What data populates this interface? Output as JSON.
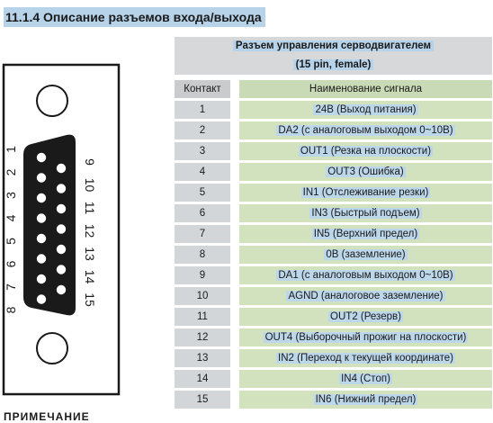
{
  "heading": "11.1.4 Описание разъемов входа/выхода",
  "table": {
    "title_line1": "Разъем управления серводвигателем",
    "title_line2": "(15 pin, female)",
    "col_contact": "Контакт",
    "col_signal": "Наименование сигнала",
    "rows": [
      {
        "num": "1",
        "signal": "24В (Выход питания)"
      },
      {
        "num": "2",
        "signal": "DA2 (с аналоговым выходом 0~10В)"
      },
      {
        "num": "3",
        "signal": "OUT1 (Резка на плоскости)"
      },
      {
        "num": "4",
        "signal": "OUT3 (Ошибка)"
      },
      {
        "num": "5",
        "signal": "IN1 (Отслеживание резки)"
      },
      {
        "num": "6",
        "signal": "IN3 (Быстрый подъем)"
      },
      {
        "num": "7",
        "signal": "IN5 (Верхний предел)"
      },
      {
        "num": "8",
        "signal": "0В (заземление)"
      },
      {
        "num": "9",
        "signal": "DA1 (с аналоговым выходом 0~10В)"
      },
      {
        "num": "10",
        "signal": "AGND (аналоговое заземление)"
      },
      {
        "num": "11",
        "signal": "OUT2 (Резерв)"
      },
      {
        "num": "12",
        "signal": "OUT4 (Выборочный прожиг на плоскости)"
      },
      {
        "num": "13",
        "signal": "IN2 (Переход к текущей координате)"
      },
      {
        "num": "14",
        "signal": "IN4 (Стоп)"
      },
      {
        "num": "15",
        "signal": "IN6 (Нижний предел)"
      }
    ]
  },
  "connector": {
    "left_labels": [
      "1",
      "2",
      "3",
      "4",
      "5",
      "6",
      "7",
      "8"
    ],
    "right_labels": [
      "9",
      "10",
      "11",
      "12",
      "13",
      "14",
      "15"
    ]
  },
  "footer": "ПРИМЕЧАНИЕ"
}
